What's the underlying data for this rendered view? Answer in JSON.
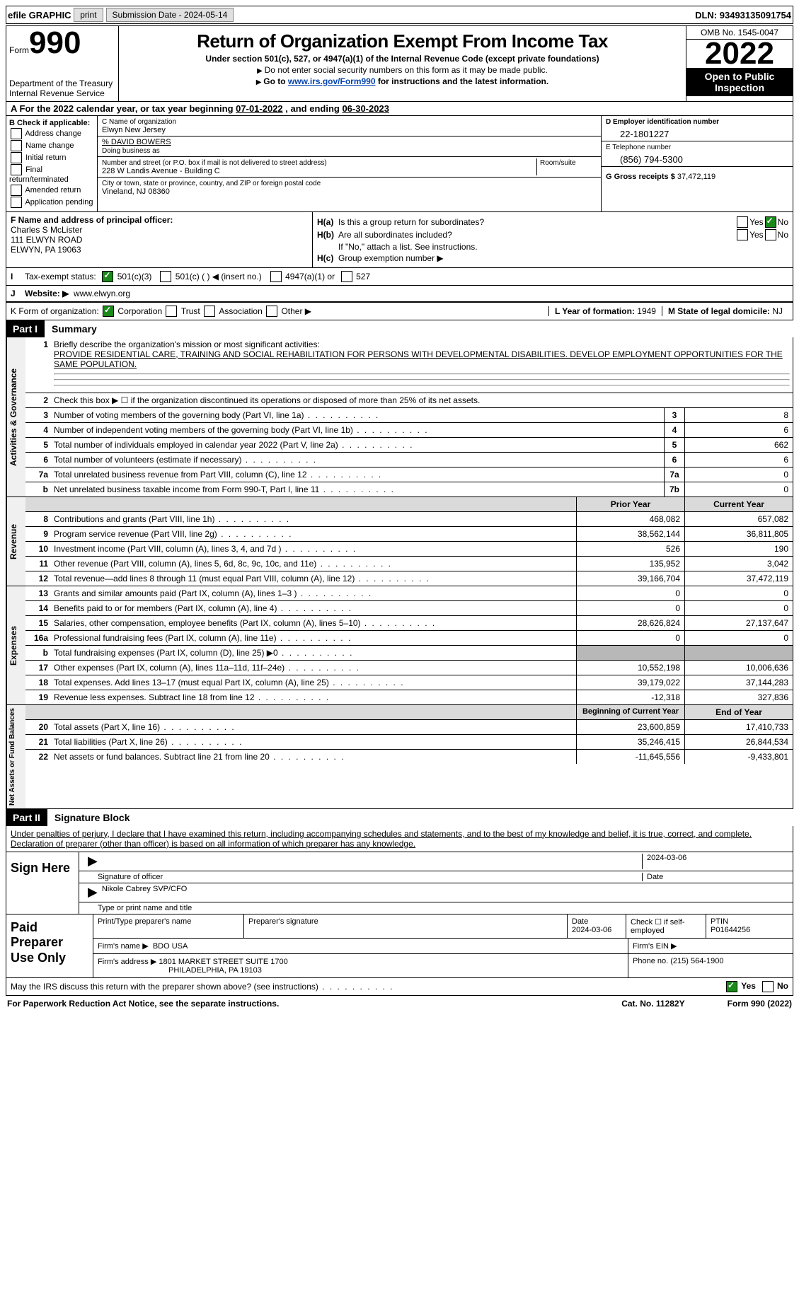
{
  "topbar": {
    "efile": "efile GRAPHIC",
    "print": "print",
    "subdate_label": "Submission Date - ",
    "subdate": "2024-05-14",
    "dln_label": "DLN: ",
    "dln": "93493135091754"
  },
  "head": {
    "form_label": "Form",
    "form_num": "990",
    "dept": "Department of the Treasury",
    "irs": "Internal Revenue Service",
    "title": "Return of Organization Exempt From Income Tax",
    "subtitle": "Under section 501(c), 527, or 4947(a)(1) of the Internal Revenue Code (except private foundations)",
    "note1": "Do not enter social security numbers on this form as it may be made public.",
    "note2_a": "Go to ",
    "note2_link": "www.irs.gov/Form990",
    "note2_b": " for instructions and the latest information.",
    "omb": "OMB No. 1545-0047",
    "year": "2022",
    "open1": "Open to Public",
    "open2": "Inspection"
  },
  "A": {
    "text_a": "For the 2022 calendar year, or tax year beginning ",
    "begin": "07-01-2022",
    "mid": " , and ending ",
    "end": "06-30-2023"
  },
  "B": {
    "header": "B Check if applicable:",
    "opts": [
      "Address change",
      "Name change",
      "Initial return",
      "Final return/terminated",
      "Amended return",
      "Application pending"
    ]
  },
  "C": {
    "name_label": "C Name of organization",
    "name": "Elwyn New Jersey",
    "care": "% DAVID BOWERS",
    "dba_label": "Doing business as",
    "addr_label": "Number and street (or P.O. box if mail is not delivered to street address)",
    "addr": "228 W Landis Avenue - Building C",
    "suite_label": "Room/suite",
    "city_label": "City or town, state or province, country, and ZIP or foreign postal code",
    "city": "Vineland, NJ  08360"
  },
  "D": {
    "label": "D Employer identification number",
    "val": "22-1801227"
  },
  "E": {
    "label": "E Telephone number",
    "val": "(856) 794-5300"
  },
  "G": {
    "label": "G Gross receipts $ ",
    "val": "37,472,119"
  },
  "F": {
    "label": "F  Name and address of principal officer:",
    "name": "Charles S McLister",
    "addr1": "111 ELWYN ROAD",
    "addr2": "ELWYN, PA  19063"
  },
  "H": {
    "a": "Is this a group return for subordinates?",
    "b": "Are all subordinates included?",
    "bnote": "If \"No,\" attach a list. See instructions.",
    "c": "Group exemption number ▶",
    "yes": "Yes",
    "no": "No"
  },
  "I": {
    "label": "Tax-exempt status:",
    "o1": "501(c)(3)",
    "o2": "501(c) (  ) ◀ (insert no.)",
    "o3": "4947(a)(1) or",
    "o4": "527"
  },
  "J": {
    "label": "Website: ▶",
    "val": "www.elwyn.org"
  },
  "K": {
    "label": "K Form of organization:",
    "o1": "Corporation",
    "o2": "Trust",
    "o3": "Association",
    "o4": "Other ▶"
  },
  "L": {
    "label": "L Year of formation: ",
    "val": "1949"
  },
  "M": {
    "label": "M State of legal domicile: ",
    "val": "NJ"
  },
  "part1": {
    "num": "Part I",
    "title": "Summary"
  },
  "summary": {
    "l1_label": "Briefly describe the organization's mission or most significant activities:",
    "l1_text": "PROVIDE RESIDENTIAL CARE, TRAINING AND SOCIAL REHABILITATION FOR PERSONS WITH DEVELOPMENTAL DISABILITIES. DEVELOP EMPLOYMENT OPPORTUNITIES FOR THE SAME POPULATION.",
    "l2": "Check this box ▶ ☐  if the organization discontinued its operations or disposed of more than 25% of its net assets.",
    "rows_ag": [
      {
        "n": "3",
        "t": "Number of voting members of the governing body (Part VI, line 1a)",
        "b": "3",
        "v": "8"
      },
      {
        "n": "4",
        "t": "Number of independent voting members of the governing body (Part VI, line 1b)",
        "b": "4",
        "v": "6"
      },
      {
        "n": "5",
        "t": "Total number of individuals employed in calendar year 2022 (Part V, line 2a)",
        "b": "5",
        "v": "662"
      },
      {
        "n": "6",
        "t": "Total number of volunteers (estimate if necessary)",
        "b": "6",
        "v": "6"
      },
      {
        "n": "7a",
        "t": "Total unrelated business revenue from Part VIII, column (C), line 12",
        "b": "7a",
        "v": "0"
      },
      {
        "n": "b",
        "t": "Net unrelated business taxable income from Form 990-T, Part I, line 11",
        "b": "7b",
        "v": "0"
      }
    ],
    "prior": "Prior Year",
    "current": "Current Year",
    "rev": [
      {
        "n": "8",
        "t": "Contributions and grants (Part VIII, line 1h)",
        "p": "468,082",
        "c": "657,082"
      },
      {
        "n": "9",
        "t": "Program service revenue (Part VIII, line 2g)",
        "p": "38,562,144",
        "c": "36,811,805"
      },
      {
        "n": "10",
        "t": "Investment income (Part VIII, column (A), lines 3, 4, and 7d )",
        "p": "526",
        "c": "190"
      },
      {
        "n": "11",
        "t": "Other revenue (Part VIII, column (A), lines 5, 6d, 8c, 9c, 10c, and 11e)",
        "p": "135,952",
        "c": "3,042"
      },
      {
        "n": "12",
        "t": "Total revenue—add lines 8 through 11 (must equal Part VIII, column (A), line 12)",
        "p": "39,166,704",
        "c": "37,472,119"
      }
    ],
    "exp": [
      {
        "n": "13",
        "t": "Grants and similar amounts paid (Part IX, column (A), lines 1–3 )",
        "p": "0",
        "c": "0"
      },
      {
        "n": "14",
        "t": "Benefits paid to or for members (Part IX, column (A), line 4)",
        "p": "0",
        "c": "0"
      },
      {
        "n": "15",
        "t": "Salaries, other compensation, employee benefits (Part IX, column (A), lines 5–10)",
        "p": "28,626,824",
        "c": "27,137,647"
      },
      {
        "n": "16a",
        "t": "Professional fundraising fees (Part IX, column (A), line 11e)",
        "p": "0",
        "c": "0"
      },
      {
        "n": "b",
        "t": "Total fundraising expenses (Part IX, column (D), line 25) ▶0",
        "p": "",
        "c": "",
        "shade": true
      },
      {
        "n": "17",
        "t": "Other expenses (Part IX, column (A), lines 11a–11d, 11f–24e)",
        "p": "10,552,198",
        "c": "10,006,636"
      },
      {
        "n": "18",
        "t": "Total expenses. Add lines 13–17 (must equal Part IX, column (A), line 25)",
        "p": "39,179,022",
        "c": "37,144,283"
      },
      {
        "n": "19",
        "t": "Revenue less expenses. Subtract line 18 from line 12",
        "p": "-12,318",
        "c": "327,836"
      }
    ],
    "boy": "Beginning of Current Year",
    "eoy": "End of Year",
    "na": [
      {
        "n": "20",
        "t": "Total assets (Part X, line 16)",
        "p": "23,600,859",
        "c": "17,410,733"
      },
      {
        "n": "21",
        "t": "Total liabilities (Part X, line 26)",
        "p": "35,246,415",
        "c": "26,844,534"
      },
      {
        "n": "22",
        "t": "Net assets or fund balances. Subtract line 21 from line 20",
        "p": "-11,645,556",
        "c": "-9,433,801"
      }
    ]
  },
  "vlabels": {
    "ag": "Activities & Governance",
    "rev": "Revenue",
    "exp": "Expenses",
    "na": "Net Assets or Fund Balances"
  },
  "part2": {
    "num": "Part II",
    "title": "Signature Block"
  },
  "sig": {
    "penalty": "Under penalties of perjury, I declare that I have examined this return, including accompanying schedules and statements, and to the best of my knowledge and belief, it is true, correct, and complete. Declaration of preparer (other than officer) is based on all information of which preparer has any knowledge.",
    "here": "Sign Here",
    "sig_of": "Signature of officer",
    "date": "Date",
    "sig_date": "2024-03-06",
    "name": "Nikole Cabrey  SVP/CFO",
    "name_label": "Type or print name and title"
  },
  "paid": {
    "label": "Paid Preparer Use Only",
    "h1": "Print/Type preparer's name",
    "h2": "Preparer's signature",
    "h3": "Date",
    "h3v": "2024-03-06",
    "h4": "Check ☐ if self-employed",
    "h5": "PTIN",
    "h5v": "P01644256",
    "firm_label": "Firm's name  ▶",
    "firm": "BDO USA",
    "ein_label": "Firm's EIN ▶",
    "addr_label": "Firm's address ▶",
    "addr1": "1801 MARKET STREET SUITE 1700",
    "addr2": "PHILADELPHIA, PA  19103",
    "phone_label": "Phone no. ",
    "phone": "(215) 564-1900"
  },
  "may": {
    "q": "May the IRS discuss this return with the preparer shown above? (see instructions)",
    "yes": "Yes",
    "no": "No"
  },
  "footer": {
    "l": "For Paperwork Reduction Act Notice, see the separate instructions.",
    "m": "Cat. No. 11282Y",
    "r": "Form 990 (2022)"
  },
  "colors": {
    "link": "#0645ad",
    "black": "#000000",
    "green": "#1a8a1a"
  }
}
